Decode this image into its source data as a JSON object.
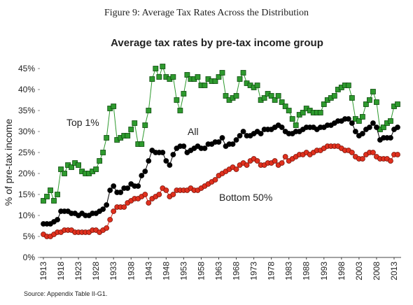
{
  "caption": "Figure 9: Average Tax Rates Across the Distribution",
  "source": "Source: Appendix Table II-G1.",
  "chart_data": {
    "type": "line",
    "title": "Average tax rates by pre-tax income group",
    "y_label": "% of pre-tax income",
    "x": [
      1913,
      1914,
      1915,
      1916,
      1917,
      1918,
      1919,
      1920,
      1921,
      1922,
      1923,
      1924,
      1925,
      1926,
      1927,
      1928,
      1929,
      1930,
      1931,
      1932,
      1933,
      1934,
      1935,
      1936,
      1937,
      1938,
      1939,
      1940,
      1941,
      1942,
      1943,
      1944,
      1945,
      1946,
      1947,
      1948,
      1949,
      1950,
      1951,
      1952,
      1953,
      1954,
      1955,
      1956,
      1957,
      1958,
      1959,
      1960,
      1961,
      1962,
      1963,
      1964,
      1965,
      1966,
      1967,
      1968,
      1969,
      1970,
      1971,
      1972,
      1973,
      1974,
      1975,
      1976,
      1977,
      1978,
      1979,
      1980,
      1981,
      1982,
      1983,
      1984,
      1985,
      1986,
      1987,
      1988,
      1989,
      1990,
      1991,
      1992,
      1993,
      1994,
      1995,
      1996,
      1997,
      1998,
      1999,
      2000,
      2001,
      2002,
      2003,
      2004,
      2005,
      2006,
      2007,
      2008,
      2009,
      2010,
      2011,
      2012,
      2013,
      2014
    ],
    "xlim": [
      1912,
      2015
    ],
    "xticks": [
      1913,
      1918,
      1923,
      1928,
      1933,
      1938,
      1943,
      1948,
      1953,
      1958,
      1963,
      1968,
      1973,
      1978,
      1983,
      1988,
      1993,
      1998,
      2003,
      2008,
      2013
    ],
    "ylim": [
      0,
      46.5
    ],
    "yticks": [
      {
        "value": 0,
        "label": "0%"
      },
      {
        "value": 5,
        "label": "5%"
      },
      {
        "value": 10,
        "label": "10%"
      },
      {
        "value": 15,
        "label": "15%"
      },
      {
        "value": 20,
        "label": "20%"
      },
      {
        "value": 25,
        "label": "25%"
      },
      {
        "value": 30,
        "label": "30%"
      },
      {
        "value": 35,
        "label": "35%"
      },
      {
        "value": 40,
        "label": "40%"
      },
      {
        "value": 45,
        "label": "45%"
      }
    ],
    "series": [
      {
        "name": "Top 1%",
        "color": "#2e9a2e",
        "marker": "square",
        "values": [
          13.5,
          14.5,
          16,
          13.5,
          15,
          21,
          20,
          22,
          21.5,
          22.5,
          22,
          20.5,
          20,
          20,
          20.5,
          21,
          23,
          25,
          28.5,
          35.5,
          36,
          28,
          28.5,
          29,
          29,
          30.5,
          32,
          27,
          27,
          31.5,
          35,
          42.5,
          45,
          43,
          45.5,
          43,
          42.5,
          43,
          37.5,
          35,
          39,
          43.5,
          42.5,
          42.5,
          43,
          41,
          41,
          42.5,
          42,
          42,
          43,
          44,
          38.5,
          37.5,
          38,
          38.5,
          42.5,
          44,
          41.5,
          41,
          40.5,
          41,
          37.5,
          38,
          39,
          38.5,
          37.5,
          38.5,
          37,
          36,
          35,
          33,
          31.5,
          34,
          34.5,
          35.5,
          35,
          34.5,
          34.5,
          34.5,
          36.5,
          37.5,
          38,
          38.5,
          40,
          40.5,
          41,
          41,
          38,
          33,
          32.5,
          33.5,
          36.5,
          37.5,
          39.5,
          37,
          30.5,
          31,
          32,
          32.5,
          36,
          36.5
        ]
      },
      {
        "name": "All",
        "color": "#000000",
        "marker": "circle",
        "values": [
          8,
          8,
          8,
          8.5,
          9,
          11,
          11,
          11,
          10.5,
          10.5,
          10,
          10.5,
          10,
          10,
          10.5,
          10.5,
          11,
          11.5,
          12.5,
          16,
          17,
          15.5,
          15.5,
          16.5,
          16.5,
          17.5,
          17,
          17,
          19.5,
          20.5,
          23,
          25.5,
          25,
          25,
          25,
          23,
          22,
          24.5,
          26,
          26.5,
          26.5,
          25,
          25.5,
          26,
          26.5,
          26,
          26,
          27,
          27,
          27.5,
          27.5,
          28.5,
          26.5,
          27,
          27,
          28,
          29,
          30,
          29,
          29,
          29.5,
          30,
          29.5,
          30.5,
          30.5,
          30.5,
          31,
          31.5,
          31,
          30,
          29.5,
          29.5,
          30,
          30,
          30.5,
          31,
          31,
          31,
          30.5,
          31,
          31,
          31.5,
          31.5,
          32,
          32.5,
          32.5,
          33,
          33,
          32,
          30,
          29,
          29.5,
          30.5,
          31,
          32,
          31,
          28,
          28.5,
          28.5,
          28.5,
          30.5,
          31
        ]
      },
      {
        "name": "Bottom 50%",
        "color": "#e0301e",
        "marker": "circle",
        "values": [
          5.5,
          5,
          5,
          5.5,
          6,
          6,
          6.5,
          6.5,
          6.5,
          6,
          6,
          6,
          6,
          6,
          6.5,
          6.5,
          6,
          6.5,
          7,
          9,
          11,
          12,
          12,
          12,
          13,
          13.5,
          14,
          14,
          14.5,
          15,
          13,
          14,
          14.5,
          15,
          16.5,
          16,
          14.5,
          15,
          16,
          16,
          16,
          16,
          16.5,
          16,
          16,
          16.5,
          17,
          17.5,
          18,
          18.5,
          19.5,
          20,
          20.5,
          21,
          21.5,
          21,
          22,
          22.5,
          22,
          23,
          23.5,
          23,
          22,
          22,
          22.5,
          22.5,
          23,
          22,
          22.5,
          24,
          23,
          23.5,
          24,
          24.5,
          24.5,
          25,
          24.5,
          25,
          25.5,
          25.5,
          26,
          26.5,
          26.5,
          26.5,
          26.5,
          26,
          25.5,
          25.5,
          25,
          24,
          23.5,
          23.5,
          24.5,
          25,
          25,
          24,
          23.5,
          23.5,
          23.5,
          23,
          24.5,
          24.5
        ]
      }
    ]
  }
}
